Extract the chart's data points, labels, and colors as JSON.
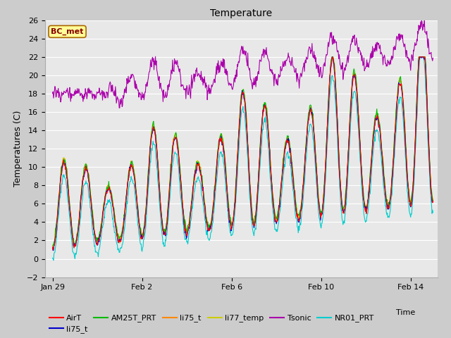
{
  "title": "Temperature",
  "xlabel": "Time",
  "ylabel": "Temperatures (C)",
  "ylim": [
    -2,
    26
  ],
  "fig_bg_color": "#cccccc",
  "plot_bg_color": "#e8e8e8",
  "annotation_text": "BC_met",
  "annotation_bg": "#ffff99",
  "annotation_border": "#aa6600",
  "annotation_text_color": "#880000",
  "legend_entries": [
    "AirT",
    "li75_t",
    "AM25T_PRT",
    "li75_t",
    "li77_temp",
    "Tsonic",
    "NR01_PRT"
  ],
  "legend_colors": [
    "#ff0000",
    "#0000cc",
    "#00bb00",
    "#ff8800",
    "#cccc00",
    "#aa00aa",
    "#00cccc"
  ],
  "x_ticks_labels": [
    "Jan 29",
    "Feb 2",
    "Feb 6",
    "Feb 10",
    "Feb 14"
  ],
  "x_ticks_days": [
    0,
    4,
    8,
    12,
    16
  ],
  "grid_color": "#ffffff",
  "spine_color": "#aaaaaa"
}
